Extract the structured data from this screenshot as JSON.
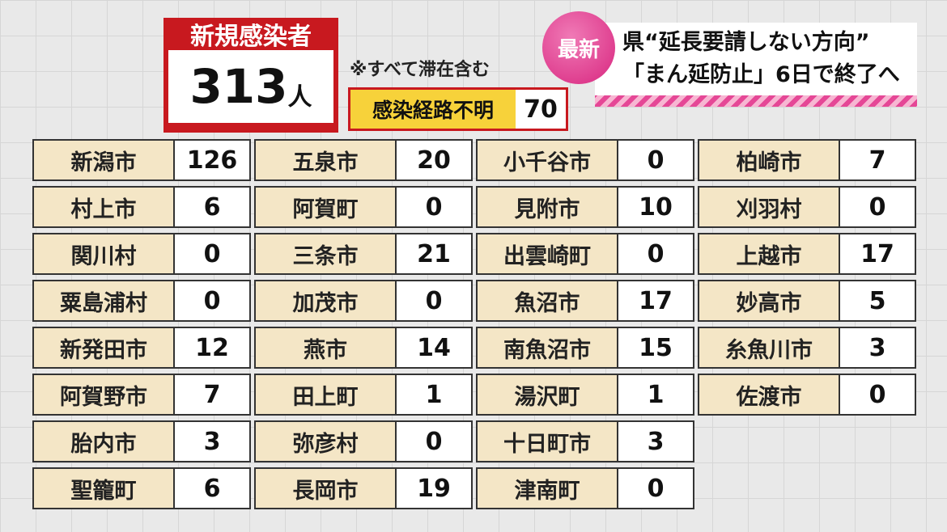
{
  "header": {
    "title": "新規感染者",
    "count": "313",
    "unit": "人",
    "note": "※すべて滞在含む",
    "unknown_label": "感染経路不明",
    "unknown_value": 70
  },
  "headline": {
    "badge": "最新",
    "lines": [
      "県“延長要請しない方向”",
      "「まん延防止」6日で終了へ"
    ]
  },
  "columns": [
    [
      {
        "name": "新潟市",
        "value": 126
      },
      {
        "name": "村上市",
        "value": 6
      },
      {
        "name": "関川村",
        "value": 0
      },
      {
        "name": "粟島浦村",
        "value": 0
      },
      {
        "name": "新発田市",
        "value": 12
      },
      {
        "name": "阿賀野市",
        "value": 7
      },
      {
        "name": "胎内市",
        "value": 3
      },
      {
        "name": "聖籠町",
        "value": 6
      }
    ],
    [
      {
        "name": "五泉市",
        "value": 20
      },
      {
        "name": "阿賀町",
        "value": 0
      },
      {
        "name": "三条市",
        "value": 21
      },
      {
        "name": "加茂市",
        "value": 0
      },
      {
        "name": "燕市",
        "value": 14
      },
      {
        "name": "田上町",
        "value": 1
      },
      {
        "name": "弥彦村",
        "value": 0
      },
      {
        "name": "長岡市",
        "value": 19
      }
    ],
    [
      {
        "name": "小千谷市",
        "value": 0
      },
      {
        "name": "見附市",
        "value": 10
      },
      {
        "name": "出雲崎町",
        "value": 0
      },
      {
        "name": "魚沼市",
        "value": 17
      },
      {
        "name": "南魚沼市",
        "value": 15
      },
      {
        "name": "湯沢町",
        "value": 1
      },
      {
        "name": "十日町市",
        "value": 3
      },
      {
        "name": "津南町",
        "value": 0
      }
    ],
    [
      {
        "name": "柏崎市",
        "value": 7
      },
      {
        "name": "刈羽村",
        "value": 0
      },
      {
        "name": "上越市",
        "value": 17
      },
      {
        "name": "妙高市",
        "value": 5
      },
      {
        "name": "糸魚川市",
        "value": 3
      },
      {
        "name": "佐渡市",
        "value": 0
      }
    ]
  ]
}
